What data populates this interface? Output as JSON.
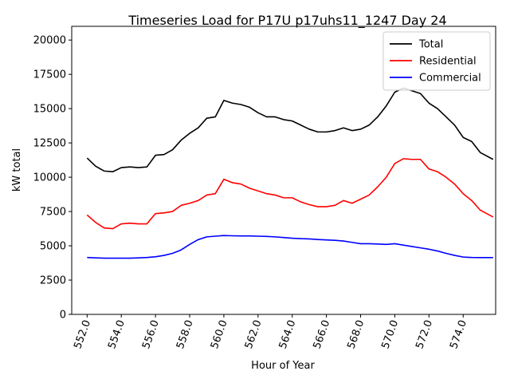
{
  "chart_data": {
    "type": "line",
    "title": "Timeseries Load for P17U p17uhs11_1247  Day 24",
    "xlabel": "Hour of Year",
    "ylabel": "kW total",
    "xlim": [
      551.1,
      575.9
    ],
    "ylim": [
      0,
      21000
    ],
    "xticks": [
      552,
      554,
      556,
      558,
      560,
      562,
      564,
      566,
      568,
      570,
      572,
      574
    ],
    "xtick_labels": [
      "552.0",
      "554.0",
      "556.0",
      "558.0",
      "560.0",
      "562.0",
      "564.0",
      "566.0",
      "568.0",
      "570.0",
      "572.0",
      "574.0"
    ],
    "yticks": [
      0,
      2500,
      5000,
      7500,
      10000,
      12500,
      15000,
      17500,
      20000
    ],
    "ytick_labels": [
      "0",
      "2500",
      "5000",
      "7500",
      "10000",
      "12500",
      "15000",
      "17500",
      "20000"
    ],
    "legend_position": "top-right",
    "grid": false,
    "x": [
      552.0,
      552.5,
      553.0,
      553.5,
      554.0,
      554.5,
      555.0,
      555.5,
      556.0,
      556.5,
      557.0,
      557.5,
      558.0,
      558.5,
      559.0,
      559.5,
      560.0,
      560.5,
      561.0,
      561.5,
      562.0,
      562.5,
      563.0,
      563.5,
      564.0,
      564.5,
      565.0,
      565.5,
      566.0,
      566.5,
      567.0,
      567.5,
      568.0,
      568.5,
      569.0,
      569.5,
      570.0,
      570.5,
      571.0,
      571.5,
      572.0,
      572.5,
      573.0,
      573.5,
      574.0,
      574.5,
      575.0,
      575.75
    ],
    "series": [
      {
        "name": "Total",
        "color": "#000000",
        "values": [
          11400,
          10800,
          10450,
          10400,
          10700,
          10750,
          10700,
          10750,
          11600,
          11650,
          12000,
          12700,
          13200,
          13600,
          14300,
          14400,
          15600,
          15400,
          15300,
          15100,
          14700,
          14400,
          14400,
          14200,
          14100,
          13800,
          13500,
          13300,
          13300,
          13400,
          13600,
          13400,
          13500,
          13800,
          14400,
          15200,
          16200,
          16500,
          16300,
          16100,
          15400,
          15000,
          14400,
          13800,
          12900,
          12600,
          11800,
          11300
        ]
      },
      {
        "name": "Residential",
        "color": "#ff0000",
        "values": [
          7250,
          6700,
          6300,
          6250,
          6600,
          6650,
          6600,
          6600,
          7350,
          7400,
          7500,
          7950,
          8100,
          8300,
          8700,
          8800,
          9850,
          9600,
          9500,
          9200,
          9000,
          8800,
          8700,
          8500,
          8500,
          8200,
          8000,
          7850,
          7850,
          7950,
          8300,
          8100,
          8400,
          8700,
          9300,
          10000,
          11000,
          11350,
          11300,
          11300,
          10600,
          10400,
          10000,
          9500,
          8800,
          8300,
          7600,
          7100
        ]
      },
      {
        "name": "Commercial",
        "color": "#0000ff",
        "values": [
          4150,
          4120,
          4100,
          4100,
          4100,
          4100,
          4120,
          4150,
          4200,
          4300,
          4450,
          4700,
          5100,
          5450,
          5650,
          5700,
          5750,
          5730,
          5720,
          5720,
          5700,
          5680,
          5650,
          5600,
          5550,
          5520,
          5500,
          5460,
          5430,
          5400,
          5350,
          5250,
          5150,
          5150,
          5130,
          5100,
          5150,
          5050,
          4950,
          4850,
          4750,
          4620,
          4450,
          4300,
          4180,
          4150,
          4140,
          4140
        ]
      }
    ]
  }
}
